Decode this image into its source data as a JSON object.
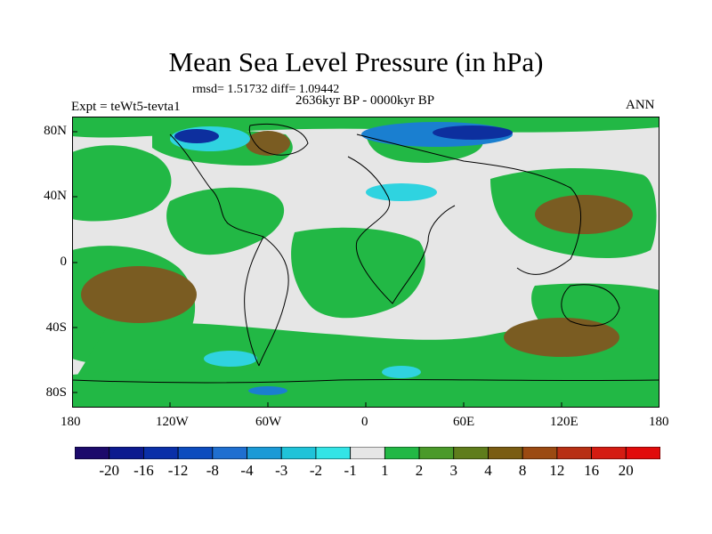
{
  "title": "Mean Sea Level Pressure (in hPa)",
  "stats": "rmsd= 1.51732  diff= 1.09442",
  "period": "2636kyr BP - 0000kyr BP",
  "expt": "Expt = teWt5-tevta1",
  "season": "ANN",
  "y_ticks": [
    "80N",
    "40N",
    "0",
    "40S",
    "80S"
  ],
  "x_ticks": [
    "180",
    "120W",
    "60W",
    "0",
    "60E",
    "120E",
    "180"
  ],
  "colorbar": {
    "labels": [
      "-20",
      "-16",
      "-12",
      "-8",
      "-4",
      "-3",
      "-2",
      "-1",
      "1",
      "2",
      "3",
      "4",
      "8",
      "12",
      "16",
      "20"
    ],
    "colors": [
      "#1c0a6b",
      "#0c1a8f",
      "#0a2fa8",
      "#0d4cbe",
      "#1f6fd0",
      "#1b9ad6",
      "#1fc3d9",
      "#33e4e6",
      "#e6e6e6",
      "#22b845",
      "#4a9a2a",
      "#5f7d1c",
      "#7a5c12",
      "#9b4a12",
      "#b83014",
      "#d41c12",
      "#e10b0b"
    ]
  },
  "colors": {
    "land_neutral": "#e6e6e6",
    "positive_1": "#22b845",
    "positive_2": "#4a9a2a",
    "positive_3": "#7a5c22",
    "negative_1": "#2fd3e0",
    "negative_2": "#1a7fd0",
    "negative_3": "#0d2f9e"
  }
}
